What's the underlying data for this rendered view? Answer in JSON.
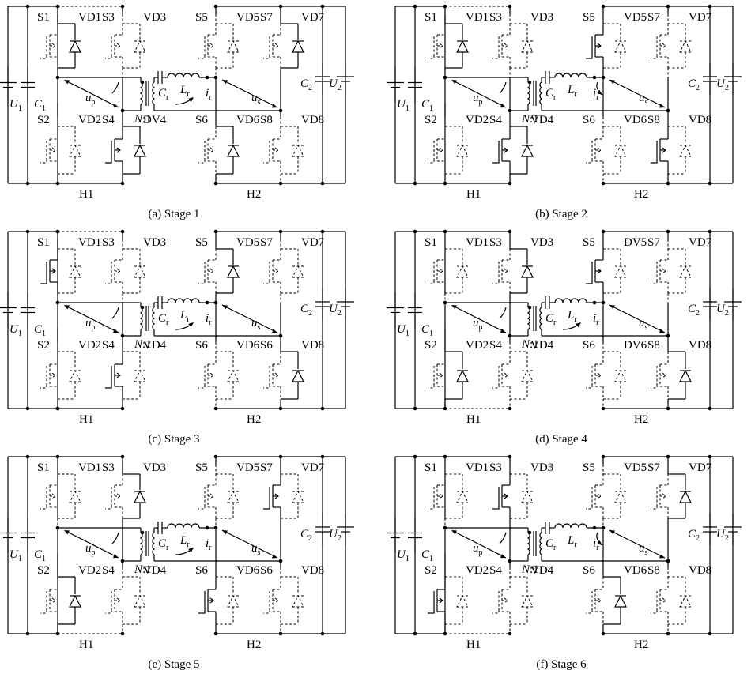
{
  "labels": {
    "S1": "S1",
    "S2": "S2",
    "S3": "S3",
    "S4": "S4",
    "S5": "S5",
    "S6": "S6",
    "S7": "S7",
    "S8": "S8",
    "VD1": "VD1",
    "VD2": "VD2",
    "VD3": "VD3",
    "VD4": "VD4",
    "VD5": "VD5",
    "VD6": "VD6",
    "VD7": "VD7",
    "VD8": "VD8",
    "DV4": "DV4",
    "DV5": "DV5",
    "DV6": "DV6",
    "U1": "U",
    "U1sub": "1",
    "C1": "C",
    "C1sub": "1",
    "U2": "U",
    "U2sub": "2",
    "C2": "C",
    "C2sub": "2",
    "Cr": "C",
    "Crsub": "r",
    "Lr": "L",
    "Lrsub": "r",
    "ir": "i",
    "irsub": "r",
    "up": "u",
    "upsub": "p",
    "us": "u",
    "ussub": "s",
    "N": "N",
    "ratio": ":1",
    "H1": "H1",
    "H2": "H2"
  },
  "panels": [
    {
      "caption": "(a)  Stage 1",
      "on": [
        "VD1",
        "S4",
        "VD4",
        "VD6",
        "VD7"
      ],
      "names": {
        "s4d": "DV4",
        "s5d": "VD5",
        "s6d": "VD6",
        "s8": "S8"
      },
      "cur": "lower"
    },
    {
      "caption": "(b)  Stage 2",
      "on": [
        "VD1",
        "S4",
        "VD4",
        "S5",
        "S8"
      ],
      "names": {
        "s4d": "VD4",
        "s5d": "VD5",
        "s6d": "VD6",
        "s8": "S8"
      },
      "cur": "upper"
    },
    {
      "caption": "(c)  Stage 3",
      "on": [
        "S1",
        "S4",
        "VD5",
        "VD8"
      ],
      "names": {
        "s4d": "VD4",
        "s5d": "VD5",
        "s6d": "VD6",
        "s8": "S6"
      },
      "cur": "lower"
    },
    {
      "caption": "(d)  Stage 4",
      "on": [
        "VD3",
        "VD2",
        "S5",
        "VD8"
      ],
      "names": {
        "s4d": "VD4",
        "s5d": "DV5",
        "s6d": "DV6",
        "s8": "S8"
      },
      "cur": "lower"
    },
    {
      "caption": "(e)  Stage 5",
      "on": [
        "VD3",
        "VD2",
        "S6",
        "S7"
      ],
      "names": {
        "s4d": "VD4",
        "s5d": "VD5",
        "s6d": "VD6",
        "s8": "S6"
      },
      "cur": "lower"
    },
    {
      "caption": "(f)  Stage 6",
      "on": [
        "S2",
        "S3",
        "VD6",
        "VD7"
      ],
      "names": {
        "s4d": "VD4",
        "s5d": "VD5",
        "s6d": "VD6",
        "s8": "S8"
      },
      "cur": "upper"
    }
  ]
}
